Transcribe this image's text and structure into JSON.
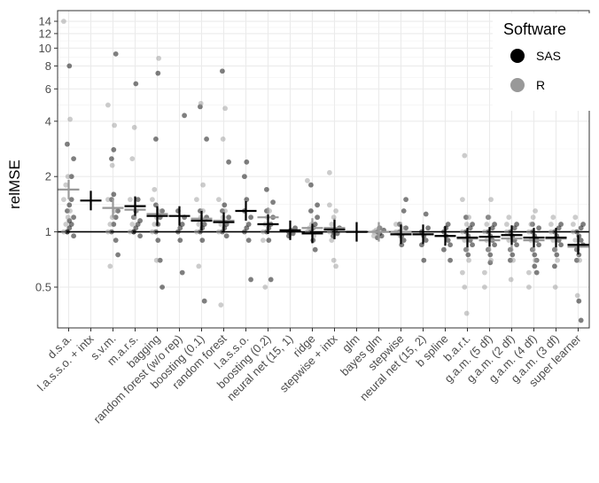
{
  "chart_data": {
    "type": "scatter",
    "ylabel": "relMSE",
    "y_scale": "log",
    "ylim": [
      0.3,
      16
    ],
    "y_ticks": [
      0.5,
      1,
      2,
      4,
      6,
      8,
      10,
      12,
      14
    ],
    "y_tick_labels": [
      "0.5",
      "1",
      "2",
      "4",
      "6",
      "8",
      "10",
      "12",
      "14"
    ],
    "reference_line": 1,
    "grid": true,
    "categories": [
      "d.s.a.",
      "l.a.s.s.o. + intx",
      "s.v.m.",
      "m.a.r.s.",
      "bagging",
      "random forest (w/o rep)",
      "boosting (0.1)",
      "random forest",
      "l.a.s.s.o.",
      "boosting (0.2)",
      "neural net (15, 1)",
      "ridge",
      "stepwise + intx",
      "glm",
      "bayes glm",
      "stepwise",
      "neural net (15, 2)",
      "b spline",
      "b.a.r.t.",
      "g.a.m. (5 df)",
      "g.a.m. (2 df)",
      "g.a.m. (4 df)",
      "g.a.m. (3 df)",
      "super learner"
    ],
    "legend": {
      "title": "Software",
      "position": "top-right",
      "entries": [
        {
          "label": "SAS",
          "color": "#000000"
        },
        {
          "label": "R",
          "color": "#999999"
        }
      ]
    },
    "series": [
      {
        "name": "SAS",
        "color": "#000000",
        "summary": [
          null,
          1.48,
          null,
          1.38,
          1.22,
          1.22,
          1.15,
          1.13,
          1.3,
          1.1,
          1.02,
          0.98,
          1.03,
          1.0,
          null,
          0.97,
          0.97,
          0.95,
          0.93,
          0.94,
          0.96,
          0.93,
          0.93,
          0.85
        ],
        "points": [
          [
            1.0,
            1.05,
            1.1,
            1.2,
            1.3,
            1.4,
            1.5,
            0.95,
            1.0,
            1.15,
            2.0,
            2.5,
            3.0,
            8.0
          ],
          [],
          [
            1.0,
            1.1,
            1.2,
            1.3,
            1.5,
            1.6,
            0.9,
            0.75,
            2.5,
            2.8,
            9.3
          ],
          [
            1.0,
            1.05,
            1.1,
            1.15,
            1.2,
            1.3,
            1.5,
            0.95,
            1.0,
            6.4
          ],
          [
            1.0,
            1.1,
            1.2,
            1.3,
            1.4,
            0.9,
            0.7,
            0.5,
            3.2,
            7.3
          ],
          [
            1.0,
            1.05,
            1.1,
            1.2,
            1.3,
            0.9,
            0.6,
            4.3
          ],
          [
            1.0,
            1.05,
            1.1,
            1.2,
            1.3,
            0.9,
            0.42,
            3.2,
            4.8
          ],
          [
            1.0,
            1.05,
            1.1,
            1.2,
            1.3,
            1.4,
            0.95,
            2.4,
            7.5
          ],
          [
            1.0,
            1.05,
            1.1,
            1.2,
            1.3,
            1.5,
            0.9,
            0.55,
            2.0,
            2.4
          ],
          [
            1.0,
            1.05,
            1.1,
            1.2,
            1.3,
            0.9,
            0.55,
            1.45,
            1.7
          ],
          [
            1.0,
            1.02,
            0.98,
            1.05,
            0.95
          ],
          [
            1.0,
            1.05,
            1.1,
            1.2,
            1.3,
            0.9,
            0.8,
            1.4,
            1.8
          ],
          [
            1.0,
            1.02,
            0.98,
            1.05,
            0.95
          ],
          [],
          [
            1.0,
            0.98,
            0.95,
            1.02,
            0.93,
            1.05
          ],
          [
            1.0,
            0.95,
            0.9,
            1.05,
            1.1,
            0.85,
            1.3,
            1.5
          ],
          [
            1.0,
            0.95,
            0.9,
            1.05,
            0.85,
            0.7,
            1.25
          ],
          [
            1.0,
            0.95,
            0.9,
            0.85,
            0.8,
            1.05,
            1.1,
            0.7
          ],
          [
            1.0,
            0.95,
            0.9,
            0.85,
            0.8,
            0.75,
            1.05,
            1.1,
            1.2
          ],
          [
            1.0,
            0.95,
            0.9,
            0.85,
            0.8,
            0.75,
            1.05,
            1.1,
            1.2,
            0.68
          ],
          [
            1.0,
            0.95,
            0.9,
            0.85,
            0.8,
            0.75,
            1.05,
            1.1,
            0.7
          ],
          [
            1.0,
            0.95,
            0.9,
            0.85,
            0.8,
            0.75,
            0.7,
            1.05,
            1.1,
            0.65,
            0.6
          ],
          [
            1.0,
            0.95,
            0.9,
            0.85,
            0.8,
            0.75,
            1.05,
            1.1,
            0.65
          ],
          [
            1.0,
            0.95,
            0.9,
            0.85,
            0.8,
            0.75,
            1.05,
            1.1,
            0.7,
            0.42,
            0.33
          ]
        ]
      },
      {
        "name": "R",
        "color": "#999999",
        "summary": [
          1.7,
          null,
          1.35,
          1.32,
          1.25,
          null,
          1.18,
          1.15,
          null,
          1.2,
          null,
          1.05,
          1.05,
          null,
          1.0,
          1.0,
          null,
          null,
          0.92,
          0.9,
          0.92,
          0.9,
          0.92,
          0.83
        ],
        "points": [
          [
            1.0,
            1.1,
            1.2,
            1.3,
            1.5,
            1.8,
            2.0,
            4.1,
            14.0
          ],
          [],
          [
            1.0,
            1.1,
            1.2,
            1.3,
            1.5,
            0.65,
            2.3,
            3.8,
            4.9
          ],
          [
            1.0,
            1.1,
            1.2,
            1.3,
            1.5,
            2.5,
            3.7
          ],
          [
            1.0,
            1.1,
            1.2,
            1.3,
            1.5,
            1.7,
            0.7,
            8.8
          ],
          [],
          [
            1.0,
            1.1,
            1.2,
            1.3,
            1.5,
            0.65,
            5.0,
            1.8
          ],
          [
            1.0,
            1.1,
            1.2,
            1.3,
            1.5,
            0.4,
            3.2,
            4.7
          ],
          [],
          [
            1.0,
            1.1,
            1.2,
            1.3,
            0.9,
            0.5
          ],
          [],
          [
            1.0,
            1.05,
            1.1,
            0.95,
            1.9
          ],
          [
            1.0,
            1.1,
            1.2,
            1.3,
            1.4,
            0.9,
            0.7,
            0.65,
            2.1
          ],
          [],
          [
            1.0,
            1.02,
            0.98,
            1.05,
            0.95
          ],
          [
            1.0,
            0.98,
            0.95,
            1.05,
            1.1
          ],
          [],
          [],
          [
            1.0,
            0.9,
            0.8,
            0.7,
            0.6,
            0.5,
            1.1,
            1.2,
            1.5,
            2.6,
            0.36
          ],
          [
            1.0,
            0.9,
            0.8,
            0.7,
            0.6,
            1.1,
            1.2,
            1.5,
            0.5
          ],
          [
            1.0,
            0.9,
            0.8,
            0.7,
            1.1,
            1.2,
            0.55
          ],
          [
            1.0,
            0.9,
            0.8,
            0.7,
            0.6,
            1.1,
            1.2,
            1.3,
            0.5
          ],
          [
            1.0,
            0.9,
            0.8,
            0.7,
            1.1,
            1.2,
            0.5
          ],
          [
            1.0,
            0.9,
            0.8,
            0.7,
            1.1,
            1.2,
            0.45
          ]
        ]
      }
    ]
  }
}
